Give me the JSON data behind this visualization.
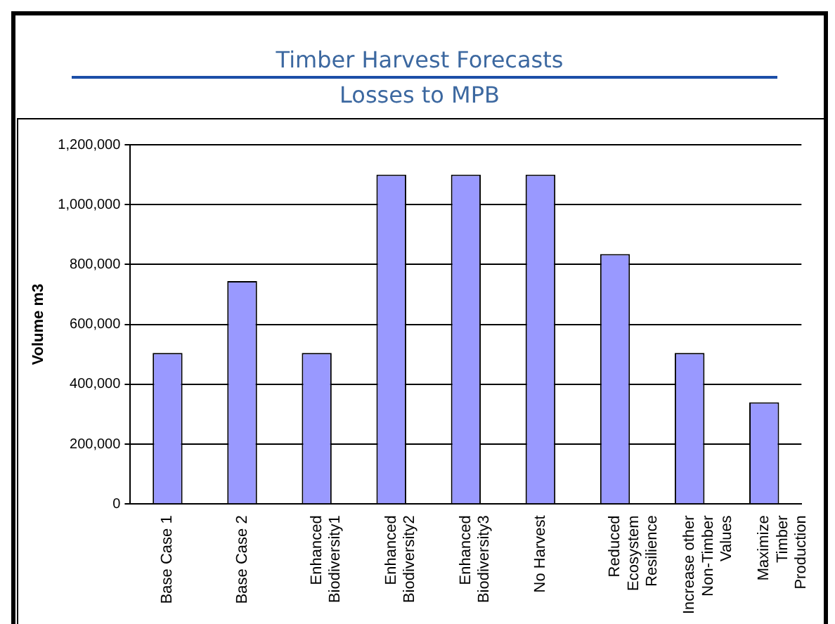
{
  "chart_data": {
    "type": "bar",
    "title": "Timber Harvest Forecasts",
    "subtitle": "Losses to MPB",
    "ylabel": "Volume m3",
    "categories": [
      "Base Case 1",
      "Base Case 2",
      "Enhanced Biodiversity1",
      "Enhanced Biodiversity2",
      "Enhanced Biodiversity3",
      "No Harvest",
      "Reduced Ecosystem Resilience",
      "Increase other Non-Timber Values",
      "Maximize Timber Production"
    ],
    "values": [
      505000,
      745000,
      505000,
      1100000,
      1100000,
      1100000,
      835000,
      505000,
      340000
    ],
    "color": "#9999ff",
    "ylim": [
      0,
      1200000
    ],
    "yticks": [
      0,
      {
        "value": 200000,
        "label": "200,000"
      },
      {
        "value": 400000,
        "label": "400,000"
      },
      {
        "value": 600000,
        "label": "600,000"
      },
      {
        "value": 800000,
        "label": "800,000"
      },
      {
        "value": 1000000,
        "label": "1,000,000"
      },
      {
        "value": 1200000,
        "label": "1,200,000"
      }
    ],
    "grid": "y",
    "legend": false
  }
}
